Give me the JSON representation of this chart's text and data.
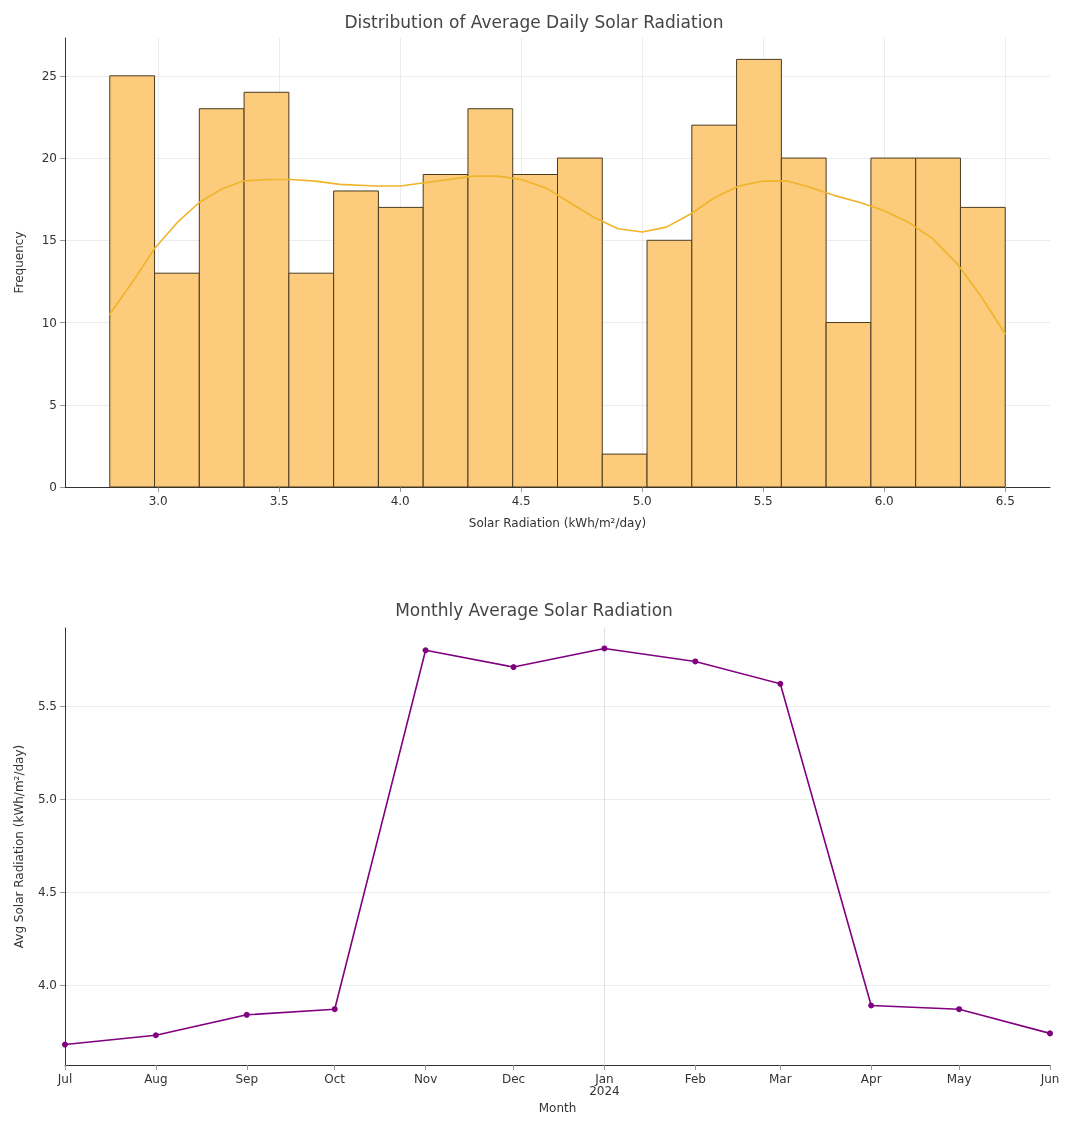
{
  "chart_data": [
    {
      "type": "histogram",
      "title": "Distribution of Average Daily Solar Radiation",
      "xlabel": "Solar Radiation (kWh/m²/day)",
      "ylabel": "Frequency",
      "bins": [
        2.8,
        2.985,
        3.17,
        3.355,
        3.54,
        3.725,
        3.91,
        4.095,
        4.28,
        4.465,
        4.65,
        4.835,
        5.02,
        5.205,
        5.39,
        5.575,
        5.76,
        5.945,
        6.13,
        6.315,
        6.5
      ],
      "values": [
        25,
        13,
        23,
        24,
        13,
        18,
        17,
        19,
        23,
        19,
        20,
        2,
        15,
        22,
        26,
        20,
        10,
        20,
        20,
        17
      ],
      "color": "#fccb7b",
      "series": [
        {
          "type": "line",
          "color": "#f0b429",
          "x": [
            2.8,
            2.9,
            2.985,
            3.08,
            3.17,
            3.26,
            3.35,
            3.45,
            3.55,
            3.65,
            3.75,
            3.9,
            4.0,
            4.1,
            4.2,
            4.3,
            4.4,
            4.5,
            4.6,
            4.7,
            4.8,
            4.9,
            5.0,
            5.1,
            5.2,
            5.3,
            5.4,
            5.5,
            5.6,
            5.7,
            5.8,
            5.9,
            6.0,
            6.1,
            6.2,
            6.3,
            6.4,
            6.5
          ],
          "values": [
            10.5,
            12.6,
            14.5,
            16.1,
            17.3,
            18.1,
            18.6,
            18.7,
            18.7,
            18.6,
            18.4,
            18.3,
            18.3,
            18.5,
            18.7,
            18.9,
            18.9,
            18.7,
            18.2,
            17.3,
            16.4,
            15.7,
            15.5,
            15.8,
            16.6,
            17.6,
            18.3,
            18.6,
            18.6,
            18.2,
            17.7,
            17.3,
            16.8,
            16.1,
            15.1,
            13.6,
            11.6,
            9.3
          ]
        }
      ],
      "xlim": [
        2.615,
        6.685
      ],
      "ylim": [
        0,
        27.3
      ],
      "xticks": [
        {
          "value": 3,
          "label": "3.0"
        },
        {
          "value": 3.5,
          "label": "3.5"
        },
        {
          "value": 4,
          "label": "4.0"
        },
        {
          "value": 4.5,
          "label": "4.5"
        },
        {
          "value": 5,
          "label": "5.0"
        },
        {
          "value": 5.5,
          "label": "5.5"
        },
        {
          "value": 6,
          "label": "6.0"
        },
        {
          "value": 6.5,
          "label": "6.5"
        }
      ],
      "yticks": [
        0,
        5,
        10,
        15,
        20,
        25
      ],
      "grid": true
    },
    {
      "type": "line",
      "title": "Monthly Average Solar Radiation",
      "xlabel": "Month",
      "ylabel": "Avg Solar Radiation (kWh/m²/day)",
      "x": [
        "2023-07",
        "2023-08",
        "2023-09",
        "2023-10",
        "2023-11",
        "2023-12",
        "2024-01",
        "2024-02",
        "2024-03",
        "2024-04",
        "2024-05",
        "2024-06"
      ],
      "series": [
        {
          "color": "#800080",
          "values": [
            3.68,
            3.73,
            3.84,
            3.87,
            5.8,
            5.71,
            5.81,
            5.74,
            5.62,
            3.89,
            3.87,
            3.74
          ]
        }
      ],
      "marker": "circle",
      "line_style": "solid",
      "xlim": [
        "2023-07",
        "2024-06"
      ],
      "ylim": [
        3.57,
        5.92
      ],
      "xticks": [
        {
          "value": "2023-07",
          "label": "Jul"
        },
        {
          "value": "2023-08",
          "label": "Aug"
        },
        {
          "value": "2023-09",
          "label": "Sep"
        },
        {
          "value": "2023-10",
          "label": "Oct"
        },
        {
          "value": "2023-11",
          "label": "Nov"
        },
        {
          "value": "2023-12",
          "label": "Dec"
        },
        {
          "value": "2024-01",
          "label": "Jan\n2024"
        },
        {
          "value": "2024-02",
          "label": "Feb"
        },
        {
          "value": "2024-03",
          "label": "Mar"
        },
        {
          "value": "2024-04",
          "label": "Apr"
        },
        {
          "value": "2024-05",
          "label": "May"
        },
        {
          "value": "2024-06",
          "label": "Jun"
        }
      ],
      "yticks": [
        {
          "value": 4,
          "label": "4.0"
        },
        {
          "value": 4.5,
          "label": "4.5"
        },
        {
          "value": 5,
          "label": "5.0"
        },
        {
          "value": 5.5,
          "label": "5.5"
        }
      ],
      "grid": "y",
      "ref_lines": [
        {
          "axis": "x",
          "value": "2024-01",
          "color": "#e0e0e0",
          "line_style": "solid"
        }
      ]
    }
  ]
}
